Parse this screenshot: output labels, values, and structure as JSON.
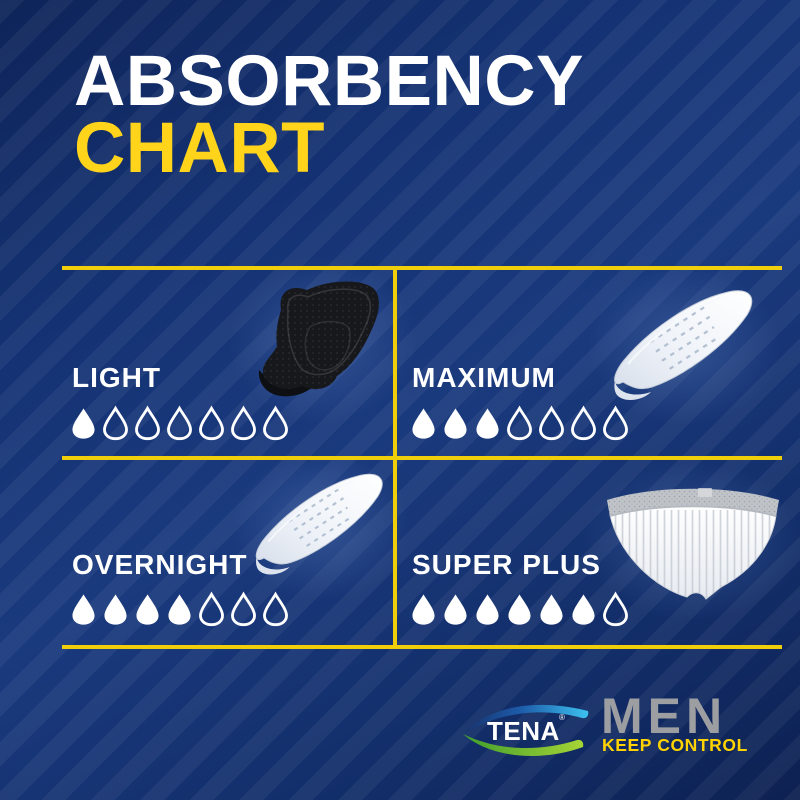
{
  "page": {
    "type": "product-absorbency-infographic"
  },
  "title": {
    "line1": "ABSORBENCY",
    "line2": "CHART"
  },
  "products": [
    {
      "name": "LIGHT",
      "filled_drops": 1,
      "total_drops": 7,
      "image": "black-absorbent-pad"
    },
    {
      "name": "MAXIMUM",
      "filled_drops": 3,
      "total_drops": 7,
      "image": "white-absorbent-pad"
    },
    {
      "name": "OVERNIGHT",
      "filled_drops": 4,
      "total_drops": 7,
      "image": "white-absorbent-pad"
    },
    {
      "name": "SUPER PLUS",
      "filled_drops": 6,
      "total_drops": 7,
      "image": "protective-underwear"
    }
  ],
  "brand": {
    "tena": "TENA",
    "registered": "®",
    "men": "MEN",
    "tagline": "KEEP CONTROL"
  },
  "colors": {
    "background_navy": "#12306E",
    "divider_yellow": "#F0CE0A",
    "title_yellow": "#FFD41A",
    "text_white": "#FFFFFF",
    "men_gray": "#9C9EA1",
    "tagline_yellow": "#FFD200",
    "logo_blue_swoosh": "#3CC1EF",
    "logo_green_swoosh": "#7FC23A"
  },
  "chart_data": {
    "type": "table",
    "title": "ABSORBENCY CHART",
    "categories": [
      "LIGHT",
      "MAXIMUM",
      "OVERNIGHT",
      "SUPER PLUS"
    ],
    "values": [
      1,
      3,
      4,
      6
    ],
    "value_scale": {
      "min": 0,
      "max": 7,
      "unit": "filled drops out of 7 drop icons"
    },
    "layout": "2x2 grid separated by yellow divider lines",
    "legend_position": "none"
  }
}
